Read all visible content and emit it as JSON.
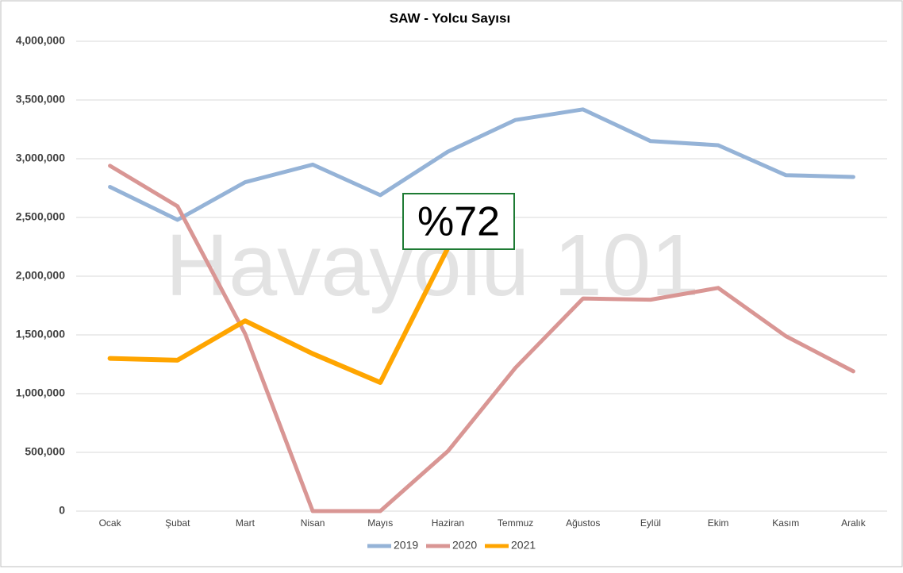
{
  "chart_data": {
    "type": "line",
    "title": "SAW - Yolcu Sayısı",
    "categories": [
      "Ocak",
      "Şubat",
      "Mart",
      "Nisan",
      "Mayıs",
      "Haziran",
      "Temmuz",
      "Ağustos",
      "Eylül",
      "Ekim",
      "Kasım",
      "Aralık"
    ],
    "series": [
      {
        "name": "2019",
        "color": "#95b3d7",
        "values": [
          2760000,
          2480000,
          2800000,
          2950000,
          2690000,
          3060000,
          3330000,
          3420000,
          3150000,
          3115000,
          2860000,
          2845000
        ]
      },
      {
        "name": "2020",
        "color": "#d99694",
        "values": [
          2940000,
          2595000,
          1510000,
          0,
          0,
          510000,
          1220000,
          1810000,
          1800000,
          1900000,
          1490000,
          1190000
        ]
      },
      {
        "name": "2021",
        "color": "#ffa500",
        "values": [
          1300000,
          1285000,
          1620000,
          1340000,
          1095000,
          2240000,
          null,
          null,
          null,
          null,
          null,
          null
        ]
      }
    ],
    "ylim": [
      0,
      4000000
    ],
    "yticks": [
      0,
      {
        "value": 500000,
        "label": "500,000"
      },
      {
        "value": 1000000,
        "label": "1,000,000"
      },
      {
        "value": 1500000,
        "label": "1,500,000"
      },
      {
        "value": 2000000,
        "label": "2,000,000"
      },
      {
        "value": 2500000,
        "label": "2,500,000"
      },
      {
        "value": 3000000,
        "label": "3,000,000"
      },
      {
        "value": 3500000,
        "label": "3,500,000"
      },
      {
        "value": 4000000,
        "label": "4,000,000"
      }
    ],
    "grid": true,
    "legend": "bottom",
    "annotations": [
      "%72",
      "Havayolu 101"
    ]
  }
}
